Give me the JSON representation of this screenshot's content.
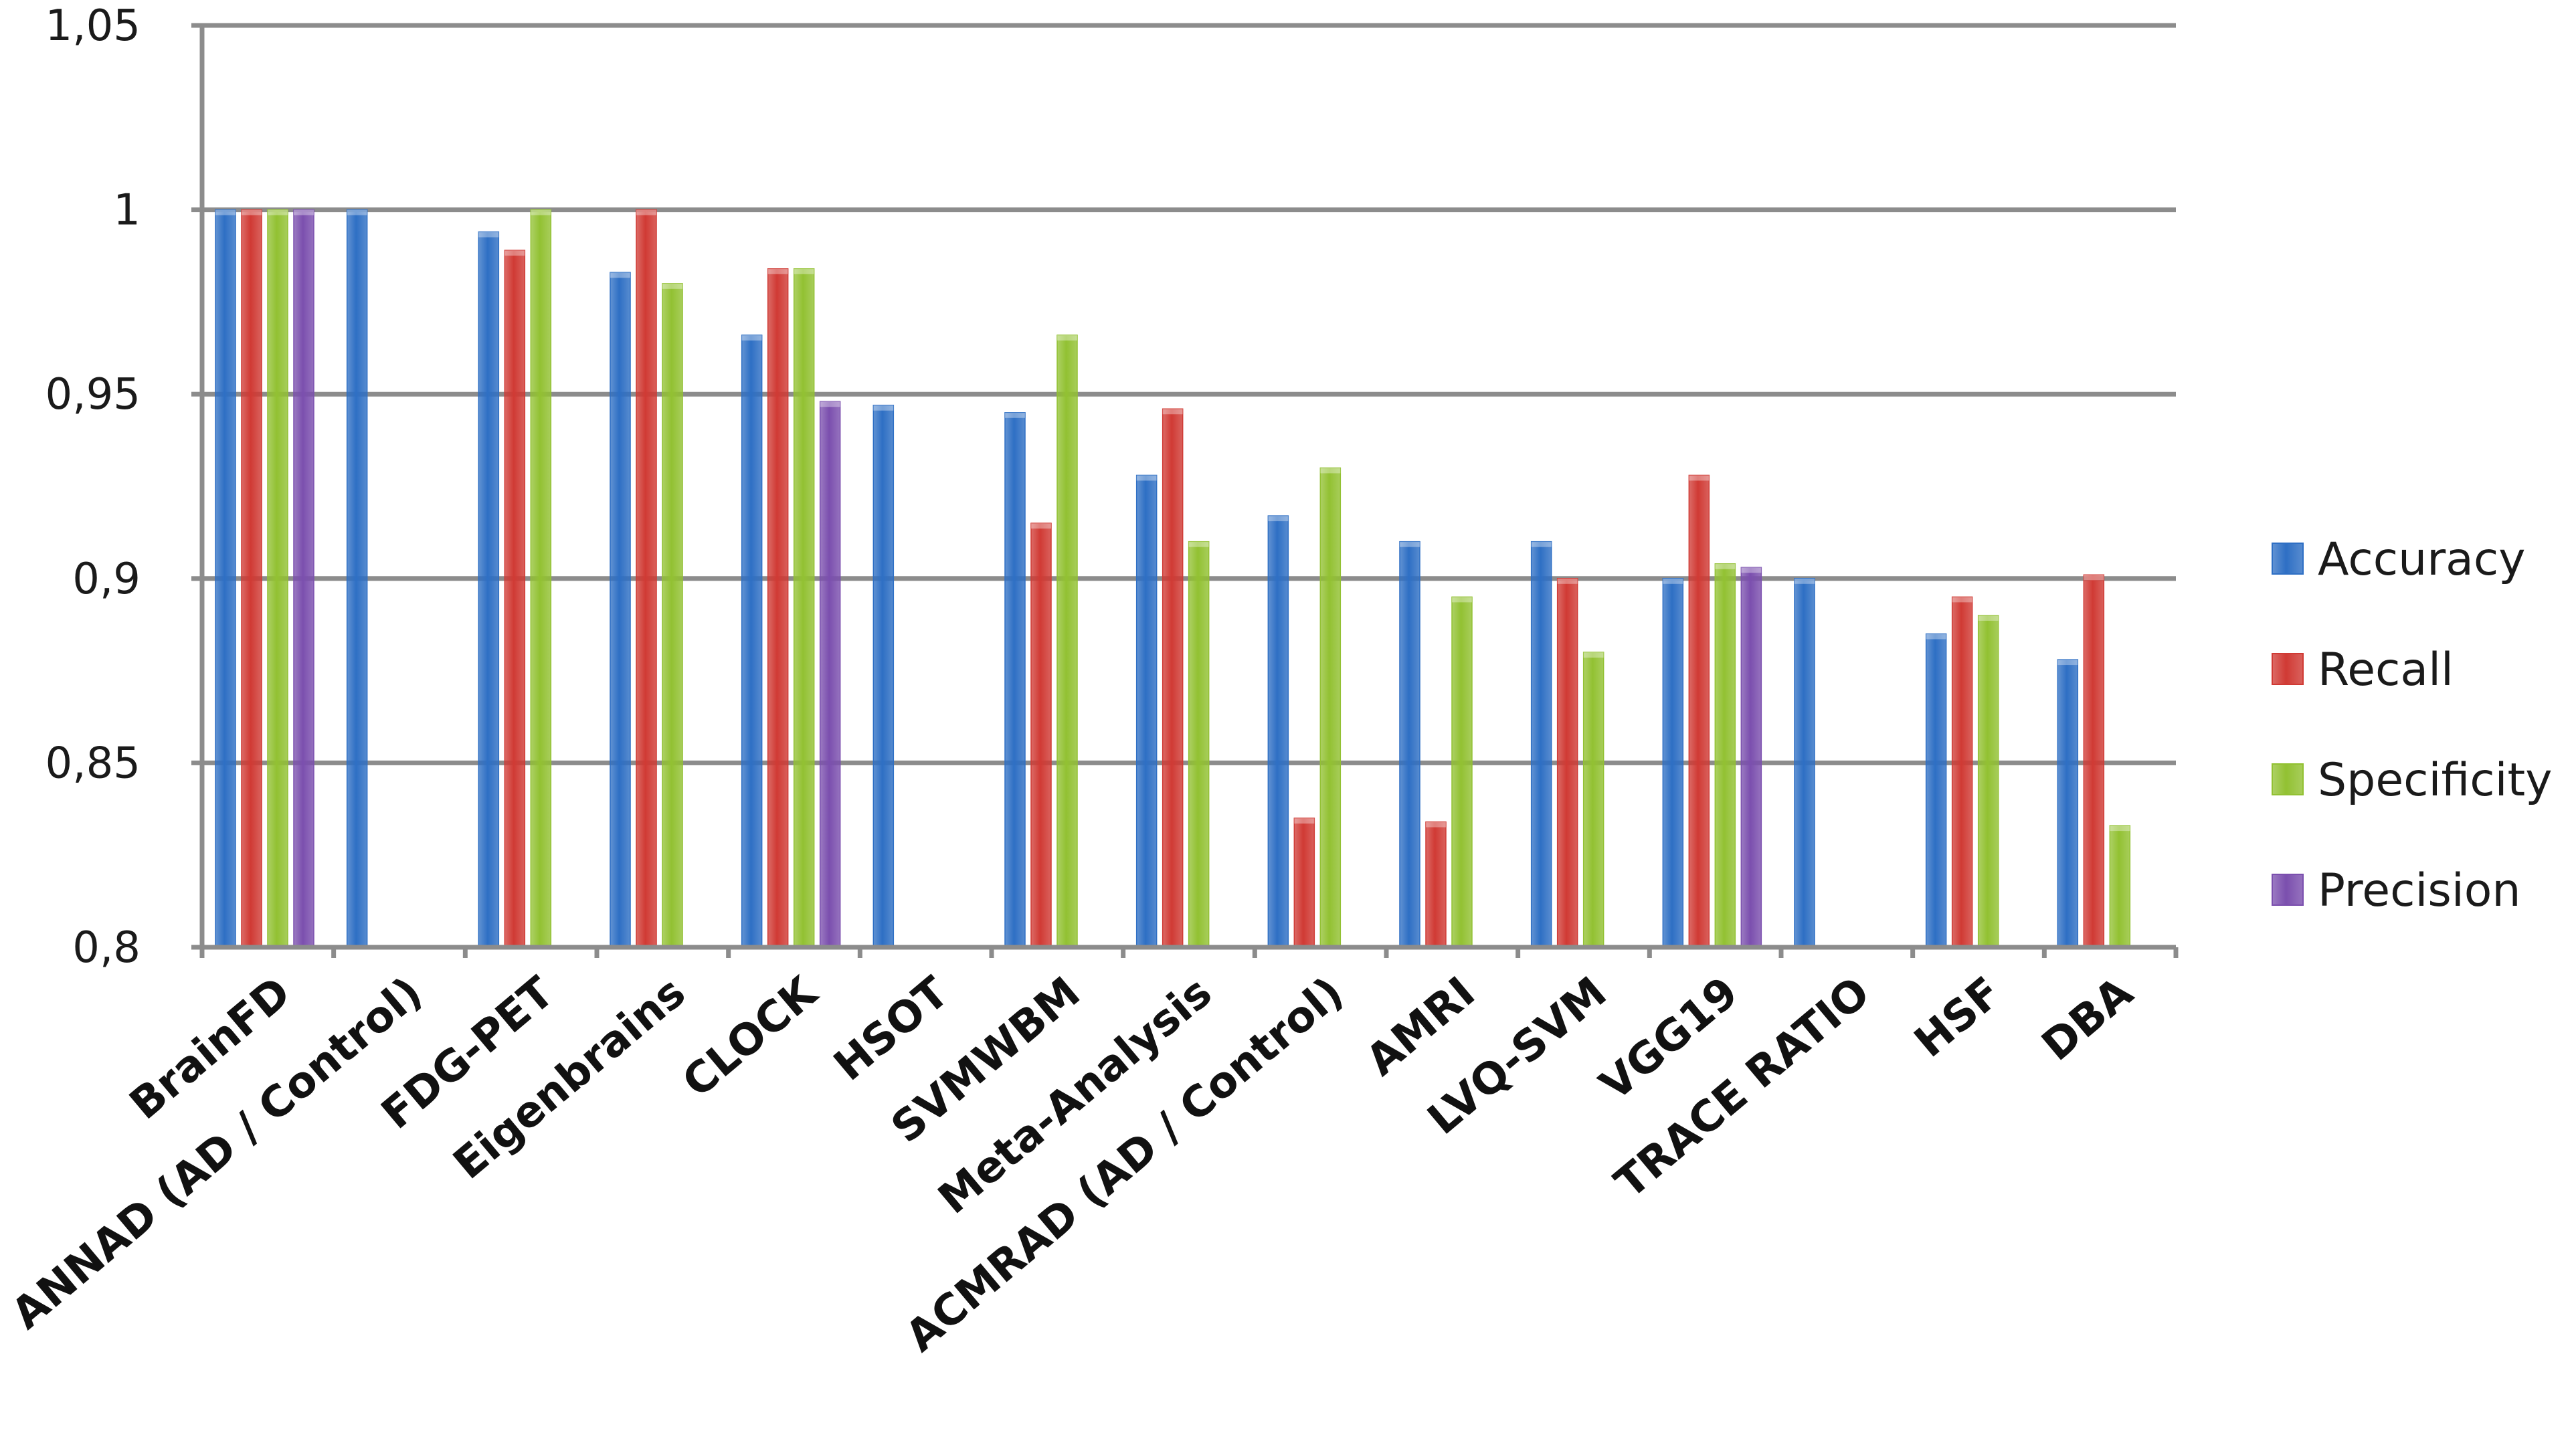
{
  "chart_data": {
    "type": "bar",
    "title": "",
    "xlabel": "",
    "ylabel": "",
    "ylim": [
      0.8,
      1.05
    ],
    "yticks": [
      0.8,
      0.85,
      0.9,
      0.95,
      1.0,
      1.05
    ],
    "ytick_labels": [
      "0,8",
      "0,85",
      "0,9",
      "0,95",
      "1",
      "1,05"
    ],
    "grid": true,
    "legend_position": "right",
    "categories": [
      "BrainFD",
      "ANNAD  (AD / Control)",
      "FDG-PET",
      "Eigenbrains",
      "CLOCK",
      "HSOT",
      "SVMWBM",
      "Meta-Analysis",
      "ACMRAD (AD / Control)",
      "AMRI",
      "LVQ-SVM",
      "VGG19",
      "TRACE RATIO",
      "HSF",
      "DBA"
    ],
    "series": [
      {
        "name": "Accuracy",
        "color": "#2e6fc4",
        "values": [
          1.0,
          1.0,
          0.994,
          0.983,
          0.966,
          0.947,
          0.945,
          0.928,
          0.917,
          0.91,
          0.91,
          0.9,
          0.9,
          0.885,
          0.878
        ]
      },
      {
        "name": "Recall",
        "color": "#d03a34",
        "values": [
          1.0,
          null,
          0.989,
          1.0,
          0.984,
          null,
          0.915,
          0.946,
          0.835,
          0.834,
          0.9,
          0.928,
          null,
          0.895,
          0.901
        ]
      },
      {
        "name": "Specificity",
        "color": "#92c132",
        "values": [
          1.0,
          null,
          1.0,
          0.98,
          0.984,
          null,
          0.966,
          0.91,
          0.93,
          0.895,
          0.88,
          0.904,
          null,
          0.89,
          0.833
        ]
      },
      {
        "name": "Precision",
        "color": "#7b4fae",
        "values": [
          1.0,
          null,
          null,
          null,
          0.948,
          null,
          null,
          null,
          null,
          null,
          null,
          0.903,
          null,
          null,
          null
        ]
      }
    ]
  }
}
